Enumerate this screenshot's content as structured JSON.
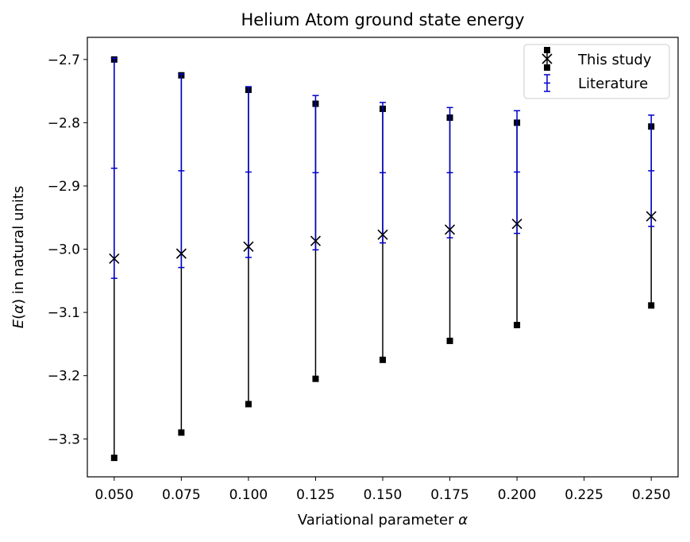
{
  "chart_data": {
    "type": "scatter",
    "title": "Helium Atom ground state energy",
    "xlabel_main": "Variational parameter ",
    "xlabel_symbol": "α",
    "ylabel_symbol_E": "E",
    "ylabel_symbol_alpha": "α",
    "ylabel_rest": " in natural units",
    "xlim": [
      0.04,
      0.26
    ],
    "ylim": [
      -3.36,
      -2.665
    ],
    "x_ticks": [
      0.05,
      0.075,
      0.1,
      0.125,
      0.15,
      0.175,
      0.2,
      0.225,
      0.25
    ],
    "x_tick_labels": [
      "0.050",
      "0.075",
      "0.100",
      "0.125",
      "0.150",
      "0.175",
      "0.200",
      "0.225",
      "0.250"
    ],
    "y_ticks": [
      -2.7,
      -2.8,
      -2.9,
      -3.0,
      -3.1,
      -3.2,
      -3.3
    ],
    "y_tick_labels": [
      "−2.7",
      "−2.8",
      "−2.9",
      "−3.0",
      "−3.1",
      "−3.2",
      "−3.3"
    ],
    "grid": false,
    "legend_position": "top-right",
    "series": [
      {
        "name": "This study",
        "color": "#000000",
        "marker": "x",
        "x": [
          0.05,
          0.075,
          0.1,
          0.125,
          0.15,
          0.175,
          0.2,
          0.25
        ],
        "y": [
          -3.015,
          -3.007,
          -2.996,
          -2.987,
          -2.977,
          -2.969,
          -2.96,
          -2.948
        ],
        "err_low": [
          -3.33,
          -3.29,
          -3.245,
          -3.205,
          -3.175,
          -3.145,
          -3.12,
          -3.089
        ],
        "err_high": [
          -2.7,
          -2.725,
          -2.748,
          -2.77,
          -2.778,
          -2.792,
          -2.8,
          -2.806
        ]
      },
      {
        "name": "Literature",
        "color": "#0000cc",
        "marker": "capped-errorbar",
        "x": [
          0.05,
          0.075,
          0.1,
          0.125,
          0.15,
          0.175,
          0.2,
          0.25
        ],
        "y": [
          -2.872,
          -2.876,
          -2.878,
          -2.879,
          -2.879,
          -2.879,
          -2.878,
          -2.876
        ],
        "err_low": [
          -3.046,
          -3.029,
          -3.013,
          -3.001,
          -2.99,
          -2.982,
          -2.975,
          -2.964
        ],
        "err_high": [
          -2.698,
          -2.723,
          -2.743,
          -2.757,
          -2.768,
          -2.776,
          -2.781,
          -2.788
        ]
      }
    ]
  }
}
